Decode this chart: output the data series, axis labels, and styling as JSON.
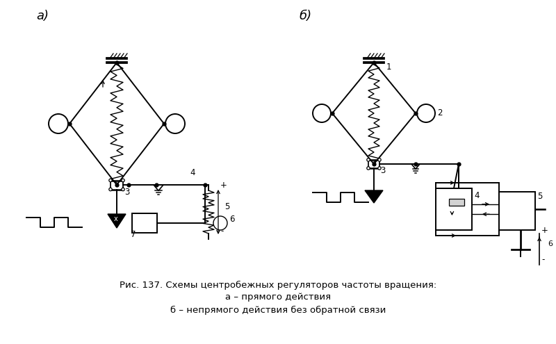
{
  "bg_color": "#ffffff",
  "line_color": "#000000",
  "title_line1": "Рис. 137. Схемы центробежных регуляторов частоты вращения:",
  "title_line2": "а – прямого действия",
  "title_line3": "б – непрямого действия без обратной связи",
  "label_a": "а)",
  "label_b": "б)",
  "fig_width": 8.0,
  "fig_height": 4.95,
  "dpi": 100
}
